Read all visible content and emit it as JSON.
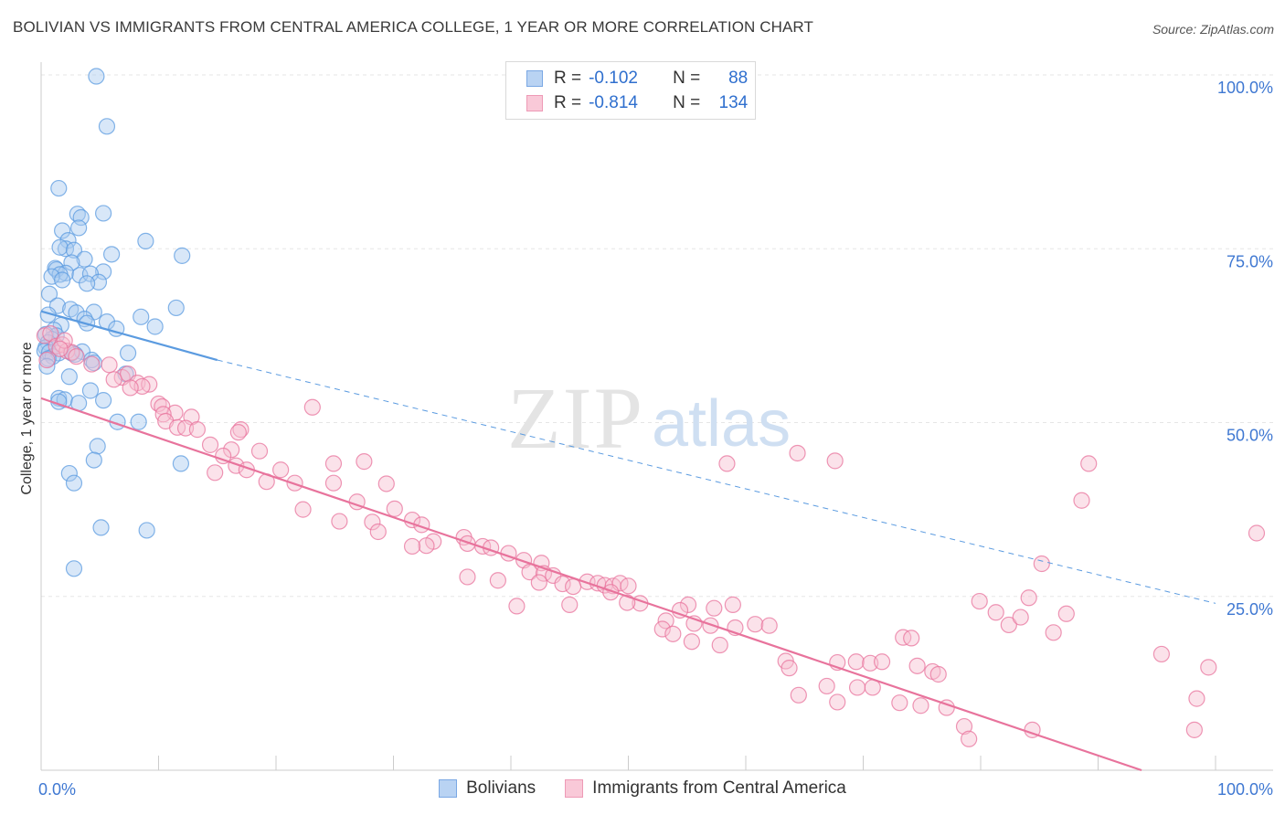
{
  "header": {
    "title": "BOLIVIAN VS IMMIGRANTS FROM CENTRAL AMERICA COLLEGE, 1 YEAR OR MORE CORRELATION CHART",
    "source": "Source: ZipAtlas.com"
  },
  "legend": {
    "r_label": "R =",
    "n_label": "N =",
    "series": [
      {
        "r": "-0.102",
        "n": "88",
        "color": "#8fb8ec"
      },
      {
        "r": "-0.814",
        "n": "134",
        "color": "#f4a7c0"
      }
    ]
  },
  "bottom_legend": [
    "Bolivians",
    "Immigrants from Central America"
  ],
  "watermark": {
    "zip": "ZIP",
    "atlas": "atlas"
  },
  "chart_data": {
    "type": "scatter",
    "ylabel": "College, 1 year or more",
    "xlim": [
      0,
      100
    ],
    "ylim": [
      0,
      100
    ],
    "x_tick_labels": [
      {
        "value": 0,
        "label": "0.0%"
      },
      {
        "value": 100,
        "label": "100.0%"
      }
    ],
    "y_tick_labels": [
      {
        "value": 100,
        "label": "100.0%"
      },
      {
        "value": 75,
        "label": "75.0%"
      },
      {
        "value": 50,
        "label": "50.0%"
      },
      {
        "value": 25,
        "label": "25.0%"
      }
    ],
    "grid": true,
    "series": [
      {
        "name": "Bolivians",
        "color": "#5b9be0",
        "fill": "#a9c9f0",
        "trend": {
          "x0": 0,
          "y0": 66.0,
          "x1": 15,
          "y1": 59.0,
          "dash_to_x": 100,
          "dash_y": 24.0
        },
        "points": [
          [
            4.7,
            99.8
          ],
          [
            5.6,
            92.6
          ],
          [
            1.5,
            83.7
          ],
          [
            5.3,
            80.1
          ],
          [
            3.1,
            80.0
          ],
          [
            3.4,
            79.5
          ],
          [
            3.2,
            78.0
          ],
          [
            1.8,
            77.6
          ],
          [
            2.3,
            76.2
          ],
          [
            8.9,
            76.1
          ],
          [
            2.1,
            75.0
          ],
          [
            1.6,
            75.2
          ],
          [
            2.8,
            74.8
          ],
          [
            6.0,
            74.2
          ],
          [
            12.0,
            74.0
          ],
          [
            3.7,
            73.5
          ],
          [
            2.6,
            73.0
          ],
          [
            1.2,
            72.2
          ],
          [
            1.3,
            72.0
          ],
          [
            2.1,
            71.5
          ],
          [
            5.3,
            71.7
          ],
          [
            1.6,
            71.3
          ],
          [
            0.9,
            71.0
          ],
          [
            3.3,
            71.2
          ],
          [
            4.2,
            71.4
          ],
          [
            1.8,
            70.5
          ],
          [
            4.9,
            70.2
          ],
          [
            3.9,
            70.0
          ],
          [
            0.7,
            68.5
          ],
          [
            11.5,
            66.5
          ],
          [
            1.4,
            66.8
          ],
          [
            2.5,
            66.3
          ],
          [
            0.6,
            65.5
          ],
          [
            3.0,
            65.8
          ],
          [
            4.5,
            65.9
          ],
          [
            8.5,
            65.2
          ],
          [
            3.7,
            64.9
          ],
          [
            5.6,
            64.5
          ],
          [
            3.9,
            64.3
          ],
          [
            1.7,
            64.0
          ],
          [
            9.7,
            63.8
          ],
          [
            6.4,
            63.5
          ],
          [
            1.1,
            63.3
          ],
          [
            0.4,
            62.7
          ],
          [
            1.3,
            62.5
          ],
          [
            0.9,
            62.0
          ],
          [
            0.6,
            61.5
          ],
          [
            0.4,
            60.8
          ],
          [
            0.3,
            60.3
          ],
          [
            0.7,
            60.1
          ],
          [
            1.5,
            60.0
          ],
          [
            2.6,
            60.0
          ],
          [
            3.5,
            60.2
          ],
          [
            7.4,
            60.0
          ],
          [
            2.9,
            59.8
          ],
          [
            1.0,
            59.5
          ],
          [
            0.6,
            59.2
          ],
          [
            4.3,
            59.0
          ],
          [
            4.5,
            58.6
          ],
          [
            0.5,
            58.1
          ],
          [
            7.2,
            57.0
          ],
          [
            2.4,
            56.6
          ],
          [
            4.2,
            54.6
          ],
          [
            1.5,
            53.5
          ],
          [
            2.0,
            53.3
          ],
          [
            1.5,
            53.0
          ],
          [
            5.3,
            53.2
          ],
          [
            3.2,
            52.8
          ],
          [
            6.5,
            50.1
          ],
          [
            8.3,
            50.1
          ],
          [
            4.8,
            46.6
          ],
          [
            11.9,
            44.1
          ],
          [
            4.5,
            44.6
          ],
          [
            2.4,
            42.7
          ],
          [
            2.8,
            41.3
          ],
          [
            5.1,
            34.9
          ],
          [
            9.0,
            34.5
          ],
          [
            2.8,
            29.0
          ]
        ]
      },
      {
        "name": "Immigrants from Central America",
        "color": "#e8739c",
        "fill": "#f7bfd0",
        "trend": {
          "x0": 0,
          "y0": 53.5,
          "x1": 93.7,
          "y1": 0
        },
        "points": [
          [
            0.3,
            62.5
          ],
          [
            0.8,
            62.8
          ],
          [
            1.3,
            61.0
          ],
          [
            1.8,
            61.2
          ],
          [
            2.2,
            60.3
          ],
          [
            2.6,
            60.1
          ],
          [
            3.0,
            59.5
          ],
          [
            0.5,
            59.0
          ],
          [
            4.3,
            58.4
          ],
          [
            5.8,
            58.3
          ],
          [
            2.0,
            61.8
          ],
          [
            1.6,
            60.6
          ],
          [
            6.9,
            56.5
          ],
          [
            7.4,
            57.0
          ],
          [
            6.2,
            56.2
          ],
          [
            8.2,
            55.7
          ],
          [
            9.2,
            55.5
          ],
          [
            8.6,
            55.2
          ],
          [
            7.6,
            55.0
          ],
          [
            10.0,
            52.7
          ],
          [
            10.3,
            52.3
          ],
          [
            11.4,
            51.4
          ],
          [
            10.4,
            51.2
          ],
          [
            10.6,
            50.2
          ],
          [
            12.8,
            50.8
          ],
          [
            11.6,
            49.3
          ],
          [
            12.3,
            49.2
          ],
          [
            13.3,
            49.0
          ],
          [
            17.0,
            49.0
          ],
          [
            16.8,
            48.6
          ],
          [
            14.4,
            46.8
          ],
          [
            16.2,
            46.1
          ],
          [
            18.6,
            45.9
          ],
          [
            15.5,
            45.2
          ],
          [
            23.1,
            52.2
          ],
          [
            24.9,
            44.1
          ],
          [
            16.6,
            43.8
          ],
          [
            17.5,
            43.2
          ],
          [
            20.4,
            43.2
          ],
          [
            27.5,
            44.4
          ],
          [
            14.8,
            42.8
          ],
          [
            19.2,
            41.5
          ],
          [
            21.6,
            41.3
          ],
          [
            24.9,
            41.3
          ],
          [
            29.4,
            41.2
          ],
          [
            22.3,
            37.5
          ],
          [
            26.9,
            38.6
          ],
          [
            30.1,
            37.6
          ],
          [
            25.4,
            35.8
          ],
          [
            28.2,
            35.7
          ],
          [
            31.6,
            36.0
          ],
          [
            32.4,
            35.3
          ],
          [
            28.7,
            34.3
          ],
          [
            33.4,
            32.9
          ],
          [
            32.8,
            32.3
          ],
          [
            31.6,
            32.2
          ],
          [
            36.0,
            33.5
          ],
          [
            36.3,
            32.6
          ],
          [
            37.6,
            32.2
          ],
          [
            38.3,
            32.0
          ],
          [
            39.8,
            31.2
          ],
          [
            41.1,
            30.2
          ],
          [
            42.6,
            29.8
          ],
          [
            41.6,
            28.5
          ],
          [
            42.8,
            28.3
          ],
          [
            43.6,
            28.0
          ],
          [
            36.3,
            27.8
          ],
          [
            38.9,
            27.3
          ],
          [
            42.4,
            27.0
          ],
          [
            44.4,
            26.8
          ],
          [
            46.5,
            27.1
          ],
          [
            47.4,
            26.9
          ],
          [
            48.0,
            26.6
          ],
          [
            48.7,
            26.5
          ],
          [
            49.3,
            26.9
          ],
          [
            45.3,
            26.4
          ],
          [
            50.0,
            26.5
          ],
          [
            48.5,
            25.6
          ],
          [
            51.0,
            24.0
          ],
          [
            49.9,
            24.1
          ],
          [
            40.5,
            23.6
          ],
          [
            45.0,
            23.8
          ],
          [
            55.1,
            23.8
          ],
          [
            57.3,
            23.3
          ],
          [
            58.9,
            23.8
          ],
          [
            54.4,
            23.0
          ],
          [
            53.2,
            21.5
          ],
          [
            55.6,
            21.1
          ],
          [
            57.0,
            20.8
          ],
          [
            59.1,
            20.5
          ],
          [
            60.8,
            21.0
          ],
          [
            52.9,
            20.3
          ],
          [
            53.8,
            19.6
          ],
          [
            55.4,
            18.5
          ],
          [
            57.8,
            18.0
          ],
          [
            62.0,
            20.8
          ],
          [
            63.4,
            15.7
          ],
          [
            67.8,
            15.5
          ],
          [
            69.4,
            15.6
          ],
          [
            70.6,
            15.4
          ],
          [
            71.6,
            15.6
          ],
          [
            73.4,
            19.1
          ],
          [
            74.1,
            19.0
          ],
          [
            74.6,
            15.0
          ],
          [
            75.9,
            14.2
          ],
          [
            76.4,
            13.8
          ],
          [
            63.7,
            14.7
          ],
          [
            64.5,
            10.8
          ],
          [
            66.9,
            12.1
          ],
          [
            67.8,
            9.8
          ],
          [
            69.5,
            11.9
          ],
          [
            70.8,
            11.9
          ],
          [
            73.1,
            9.7
          ],
          [
            74.9,
            9.3
          ],
          [
            77.1,
            9.0
          ],
          [
            78.6,
            6.3
          ],
          [
            79.9,
            24.3
          ],
          [
            81.3,
            22.7
          ],
          [
            82.4,
            20.9
          ],
          [
            83.4,
            22.0
          ],
          [
            84.1,
            24.8
          ],
          [
            85.2,
            29.7
          ],
          [
            86.2,
            19.8
          ],
          [
            87.3,
            22.5
          ],
          [
            88.6,
            38.8
          ],
          [
            89.2,
            44.1
          ],
          [
            58.4,
            44.1
          ],
          [
            64.4,
            45.6
          ],
          [
            67.6,
            44.5
          ],
          [
            84.4,
            5.8
          ],
          [
            79.0,
            4.5
          ],
          [
            95.4,
            16.7
          ],
          [
            99.4,
            14.8
          ],
          [
            103.5,
            34.1
          ],
          [
            98.2,
            5.8
          ],
          [
            98.4,
            10.3
          ]
        ]
      }
    ]
  }
}
